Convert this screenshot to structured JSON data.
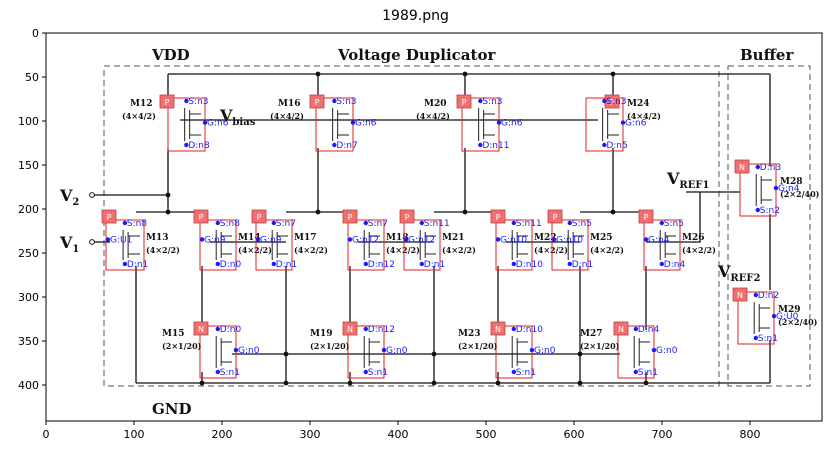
{
  "window": {
    "title": "1989.png"
  },
  "axes": {
    "x_ticks": [
      "0",
      "100",
      "200",
      "300",
      "400",
      "500",
      "600",
      "700",
      "800"
    ],
    "y_ticks": [
      "0",
      "50",
      "100",
      "150",
      "200",
      "250",
      "300",
      "350",
      "400"
    ]
  },
  "sections": {
    "vdd": "VDD",
    "duplicator": "Voltage Duplicator",
    "buffer": "Buffer",
    "gnd": "GND"
  },
  "labels": {
    "v2": "V",
    "v2_sub": "2",
    "v1": "V",
    "v1_sub": "1",
    "vbias": "V",
    "vbias_sub": "bias",
    "vref1": "V",
    "vref1_sub": "REF1",
    "vref2": "V",
    "vref2_sub": "REF2"
  },
  "transistors": [
    {
      "name": "M12",
      "size": "(4×4/2)",
      "type": "P",
      "pins": [
        "S:n3",
        "G:n6",
        "D:n8"
      ]
    },
    {
      "name": "M16",
      "size": "(4×4/2)",
      "type": "P",
      "pins": [
        "S:n3",
        "G:n6",
        "D:n7"
      ]
    },
    {
      "name": "M20",
      "size": "(4×4/2)",
      "type": "P",
      "pins": [
        "S:n3",
        "G:n6",
        "D:n11"
      ]
    },
    {
      "name": "M24",
      "size": "(4×4/2)",
      "type": "P",
      "pins": [
        "S:n3",
        "G:n6",
        "D:n5"
      ]
    },
    {
      "name": "M13",
      "size": "(4×2/2)",
      "type": "P",
      "pins": [
        "S:n8",
        "G:U1",
        "D:n1"
      ]
    },
    {
      "name": "M14",
      "size": "(4×2/2)",
      "type": "P",
      "pins": [
        "S:n8",
        "G:n9",
        "D:n0"
      ]
    },
    {
      "name": "M17",
      "size": "(4×2/2)",
      "type": "P",
      "pins": [
        "S:n7",
        "G:n9",
        "D:n1"
      ]
    },
    {
      "name": "M18",
      "size": "(4×2/2)",
      "type": "P",
      "pins": [
        "S:n7",
        "G:n12",
        "D:n12"
      ]
    },
    {
      "name": "M21",
      "size": "(4×2/2)",
      "type": "P",
      "pins": [
        "S:n11",
        "G:n12",
        "D:n1"
      ]
    },
    {
      "name": "M22",
      "size": "(4×2/2)",
      "type": "P",
      "pins": [
        "S:n11",
        "G:n10",
        "D:n10"
      ]
    },
    {
      "name": "M25",
      "size": "(4×2/2)",
      "type": "P",
      "pins": [
        "S:n5",
        "G:n10",
        "D:n1"
      ]
    },
    {
      "name": "M26",
      "size": "(4×2/2)",
      "type": "P",
      "pins": [
        "S:n5",
        "G:n4",
        "D:n4"
      ]
    },
    {
      "name": "M15",
      "size": "(2×1/20)",
      "type": "N",
      "pins": [
        "D:n0",
        "G:n0",
        "S:n1"
      ]
    },
    {
      "name": "M19",
      "size": "(2×1/20)",
      "type": "N",
      "pins": [
        "D:n12",
        "G:n0",
        "S:n1"
      ]
    },
    {
      "name": "M23",
      "size": "(2×1/20)",
      "type": "N",
      "pins": [
        "D:n10",
        "G:n0",
        "S:n1"
      ]
    },
    {
      "name": "M27",
      "size": "(2×1/20)",
      "type": "N",
      "pins": [
        "D:n4",
        "G:n0",
        "S:n1"
      ]
    },
    {
      "name": "M28",
      "size": "(2×2/40)",
      "type": "N",
      "pins": [
        "D:n3",
        "G:n4",
        "S:n2"
      ]
    },
    {
      "name": "M29",
      "size": "(2×2/40)",
      "type": "N",
      "pins": [
        "D:n2",
        "G:U0",
        "S:n1"
      ]
    }
  ],
  "colors": {
    "pin_text": "#1a1aff",
    "box_outline": "#e02020",
    "type_tag_fill": "#f07070"
  }
}
